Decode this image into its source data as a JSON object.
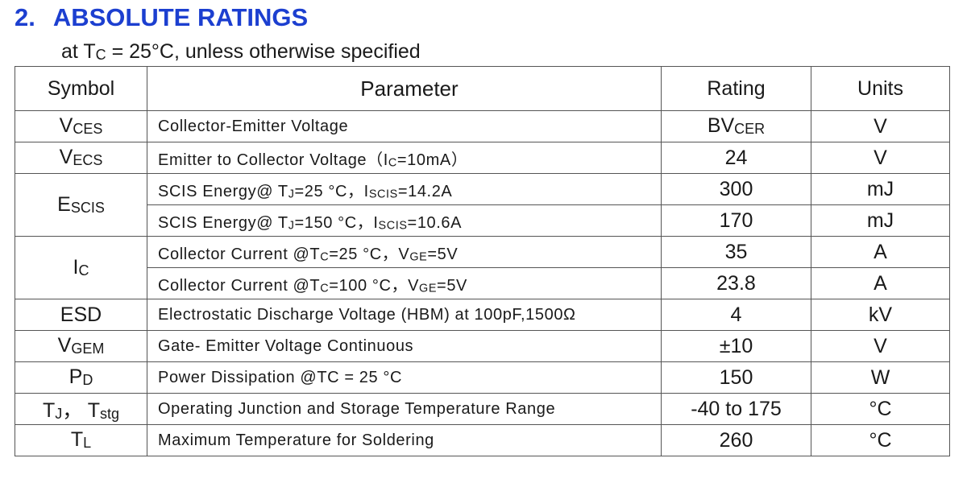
{
  "header": {
    "number": "2.",
    "title": "ABSOLUTE RATINGS",
    "subtitle": [
      "at T",
      {
        "sub": "C"
      },
      " = 25°C, unless otherwise specified"
    ]
  },
  "table": {
    "columns": [
      "Symbol",
      "Parameter",
      "Rating",
      "Units"
    ],
    "groups": [
      {
        "symbol": [
          "V",
          {
            "sub": "CES"
          }
        ],
        "rows": [
          {
            "parameter": [
              "Collector-Emitter Voltage"
            ],
            "rating": [
              "BV",
              {
                "sub": "CER"
              }
            ],
            "units": "V"
          }
        ]
      },
      {
        "symbol": [
          "V",
          {
            "sub": "ECS"
          }
        ],
        "rows": [
          {
            "parameter": [
              "Emitter to Collector Voltage（I",
              {
                "sub": "C"
              },
              "=10mA）"
            ],
            "rating": [
              "24"
            ],
            "units": "V"
          }
        ]
      },
      {
        "symbol": [
          "E",
          {
            "sub": "SCIS"
          }
        ],
        "rows": [
          {
            "parameter": [
              "SCIS Energy@ T",
              {
                "sub": "J"
              },
              "=25 °C，I",
              {
                "sub": "SCIS"
              },
              "=14.2A"
            ],
            "rating": [
              "300"
            ],
            "units": "mJ"
          },
          {
            "parameter": [
              "SCIS Energy@ T",
              {
                "sub": "J"
              },
              "=150 °C，I",
              {
                "sub": "SCIS"
              },
              "=10.6A"
            ],
            "rating": [
              "170"
            ],
            "units": "mJ"
          }
        ]
      },
      {
        "symbol": [
          "I",
          {
            "sub": "C"
          }
        ],
        "rows": [
          {
            "parameter": [
              "Collector Current @T",
              {
                "sub": "C"
              },
              "=25 °C，V",
              {
                "sub": "GE"
              },
              "=5V"
            ],
            "rating": [
              "35"
            ],
            "units": "A"
          },
          {
            "parameter": [
              "Collector Current @T",
              {
                "sub": "C"
              },
              "=100 °C，V",
              {
                "sub": "GE"
              },
              "=5V"
            ],
            "rating": [
              "23.8"
            ],
            "units": "A"
          }
        ]
      },
      {
        "symbol": [
          "ESD"
        ],
        "rows": [
          {
            "parameter": [
              "Electrostatic Discharge Voltage (HBM) at 100pF,1500Ω"
            ],
            "rating": [
              "4"
            ],
            "units": "kV"
          }
        ]
      },
      {
        "symbol": [
          "V",
          {
            "sub": "GEM"
          }
        ],
        "rows": [
          {
            "parameter": [
              "Gate- Emitter Voltage Continuous"
            ],
            "rating": [
              "±10"
            ],
            "units": "V"
          }
        ]
      },
      {
        "symbol": [
          "P",
          {
            "sub": "D"
          }
        ],
        "rows": [
          {
            "parameter": [
              "Power Dissipation @TC = 25 °C"
            ],
            "rating": [
              "150"
            ],
            "units": "W"
          }
        ]
      },
      {
        "symbol": [
          "T",
          {
            "sub": "J"
          },
          "， T",
          {
            "sub": "stg"
          }
        ],
        "rows": [
          {
            "parameter": [
              "Operating Junction and Storage Temperature Range"
            ],
            "rating": [
              "-40 to 175"
            ],
            "units": "°C"
          }
        ]
      },
      {
        "symbol": [
          "T",
          {
            "sub": "L"
          }
        ],
        "rows": [
          {
            "parameter": [
              "Maximum Temperature for Soldering"
            ],
            "rating": [
              "260"
            ],
            "units": "°C"
          }
        ]
      }
    ]
  }
}
